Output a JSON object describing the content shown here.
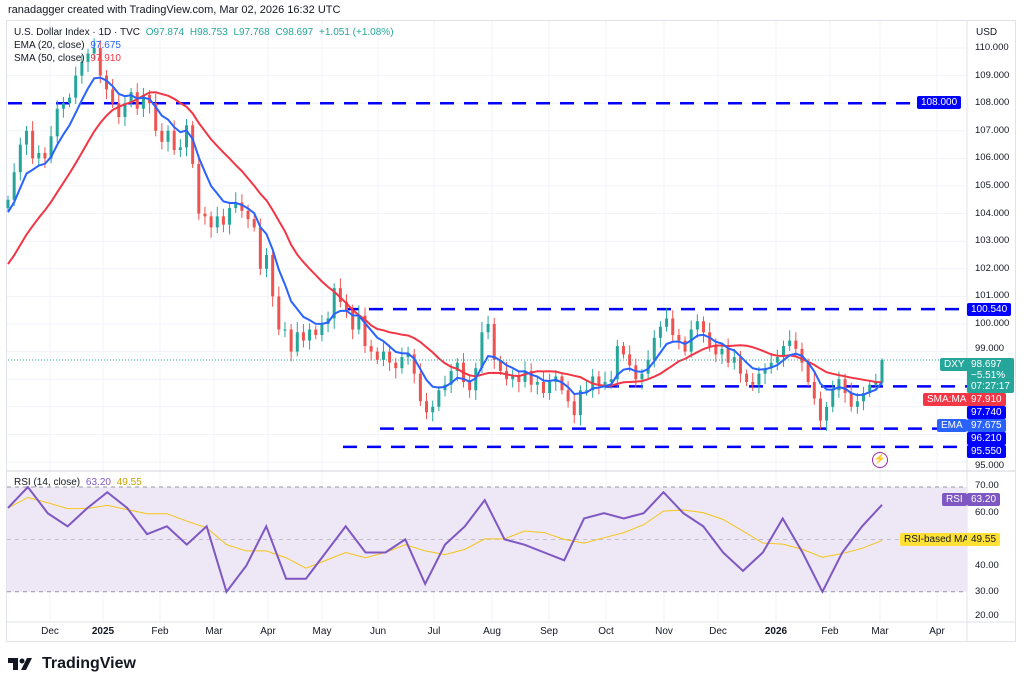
{
  "header": {
    "credit": "ranadagger created with TradingView.com, Mar 02, 2026 16:32 UTC"
  },
  "legend": {
    "symbol": "U.S. Dollar Index · 1D · TVC",
    "open": "O97.874",
    "high": "H98.753",
    "low": "L97.768",
    "close": "C98.697",
    "change": "+1.051 (+1.08%)",
    "ema_label": "EMA (20, close)",
    "ema_value": "97.675",
    "sma_label": "SMA (50, close)",
    "sma_value": "97.910",
    "rsi_label": "RSI (14, close)",
    "rsi_value": "63.20",
    "rsi_ma_value": "49.55"
  },
  "currency": "USD",
  "tags": {
    "dxy": "DXY",
    "price": "98.697",
    "pct": "−5.51%",
    "countdown": "07:27:17",
    "sma": "SMA:MA",
    "sma_val": "97.910",
    "l97740": "97.740",
    "ema": "EMA",
    "ema_val": "97.675",
    "l96210": "96.210",
    "l95550": "95.550",
    "l108": "108.000",
    "l100540": "100.540",
    "rsi": "RSI",
    "rsi_val": "63.20",
    "rsi_ma": "RSI-based MA",
    "rsi_ma_val": "49.55"
  },
  "colors": {
    "up": "#26a69a",
    "down": "#ef5350",
    "ema": "#2962ff",
    "sma": "#f23645",
    "level": "#0000ff",
    "rsi": "#7e57c2",
    "rsi_ma": "#f5c518",
    "rsi_band": "#ede7f6"
  },
  "chart_data": [
    {
      "type": "candlestick",
      "title": "U.S. Dollar Index · 1D · TVC",
      "ylim": [
        94.6,
        110.7
      ],
      "y_ticks": [
        "110.000",
        "109.000",
        "108.000",
        "107.000",
        "106.000",
        "105.000",
        "104.000",
        "103.000",
        "102.000",
        "101.000",
        "100.000",
        "99.000",
        "95.000"
      ],
      "x_ticks": [
        "Dec",
        "2025",
        "Feb",
        "Mar",
        "Apr",
        "May",
        "Jun",
        "Jul",
        "Aug",
        "Sep",
        "Oct",
        "Nov",
        "Dec",
        "2026",
        "Feb",
        "Mar",
        "Apr"
      ],
      "closes": [
        104.5,
        105.5,
        106.5,
        107.0,
        106.0,
        106.2,
        106.0,
        106.8,
        107.8,
        108.0,
        108.2,
        109.0,
        109.5,
        109.8,
        110.0,
        109.0,
        108.5,
        108.0,
        107.5,
        108.0,
        108.4,
        107.8,
        108.3,
        108.0,
        107.0,
        106.6,
        107.0,
        106.3,
        106.4,
        107.2,
        105.8,
        104.0,
        103.9,
        103.5,
        103.9,
        103.6,
        104.2,
        104.4,
        104.1,
        103.8,
        103.5,
        102.0,
        102.5,
        101.0,
        99.8,
        99.8,
        99.0,
        99.7,
        99.4,
        99.8,
        99.6,
        100.0,
        100.2,
        101.3,
        100.8,
        100.5,
        99.8,
        100.3,
        99.2,
        99.0,
        98.7,
        99.0,
        98.6,
        98.4,
        98.8,
        98.9,
        98.2,
        97.2,
        96.8,
        97.0,
        97.6,
        97.8,
        98.3,
        98.6,
        97.9,
        97.6,
        98.4,
        99.7,
        100.0,
        98.7,
        98.3,
        98.0,
        98.1,
        97.9,
        98.3,
        97.8,
        97.9,
        97.5,
        97.9,
        98.1,
        97.6,
        97.2,
        96.7,
        97.6,
        97.6,
        98.1,
        97.8,
        97.9,
        98.0,
        99.2,
        98.9,
        98.5,
        98.0,
        98.2,
        98.7,
        99.5,
        99.9,
        100.2,
        99.6,
        99.4,
        99.0,
        99.8,
        100.1,
        99.7,
        99.2,
        98.9,
        99.1,
        98.6,
        98.8,
        98.2,
        97.9,
        97.8,
        98.2,
        98.4,
        98.6,
        98.8,
        99.2,
        99.4,
        99.1,
        98.6,
        97.9,
        97.3,
        96.5,
        97.0,
        97.6,
        98.0,
        97.5,
        97.0,
        97.2,
        97.5,
        97.8,
        97.874,
        98.697
      ],
      "last": {
        "open": 97.874,
        "high": 98.753,
        "low": 97.768,
        "close": 98.697
      },
      "indicators": [
        {
          "name": "EMA (20, close)",
          "value": 97.675
        },
        {
          "name": "SMA (50, close)",
          "value": 97.91
        }
      ],
      "levels": [
        108.0,
        100.54,
        97.74,
        96.21,
        95.55
      ]
    },
    {
      "type": "line",
      "title": "RSI (14, close)",
      "ylim": [
        20,
        70
      ],
      "y_ticks": [
        "70.00",
        "60.00",
        "40.00",
        "30.00",
        "20.00"
      ],
      "bands": [
        30,
        50,
        70
      ],
      "series": [
        {
          "name": "RSI",
          "values": [
            62,
            70,
            60,
            55,
            62,
            68,
            62,
            52,
            55,
            48,
            55,
            30,
            40,
            55,
            35,
            35,
            45,
            55,
            45,
            45,
            50,
            33,
            48,
            55,
            65,
            50,
            48,
            45,
            42,
            58,
            60,
            58,
            60,
            68,
            60,
            55,
            45,
            38,
            45,
            58,
            45,
            30,
            45,
            55,
            63.2
          ]
        },
        {
          "name": "RSI-based MA",
          "last": 49.55
        }
      ]
    }
  ]
}
